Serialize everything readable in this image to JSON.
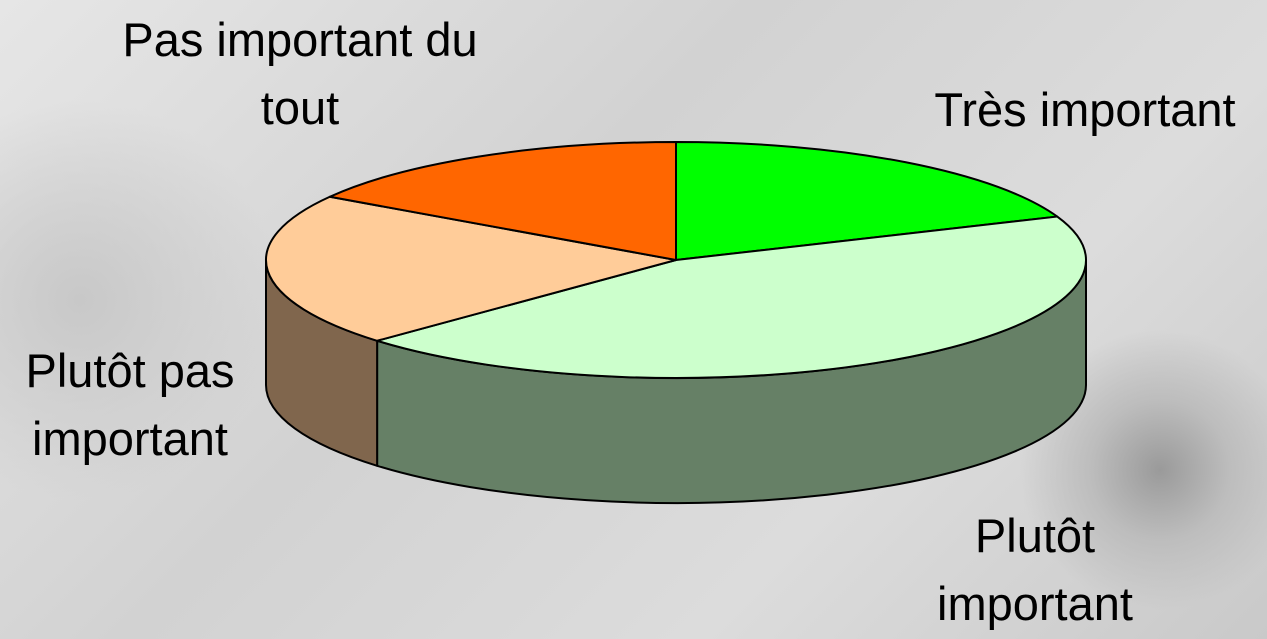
{
  "chart_data": {
    "type": "pie3d",
    "categories": [
      "Très important",
      "Plutôt important",
      "Plutôt pas important",
      "Pas important du tout"
    ],
    "values": [
      19,
      44,
      21,
      16
    ],
    "colors": [
      "#00ff00",
      "#ccffcc",
      "#ffcc99",
      "#ff6600"
    ]
  }
}
